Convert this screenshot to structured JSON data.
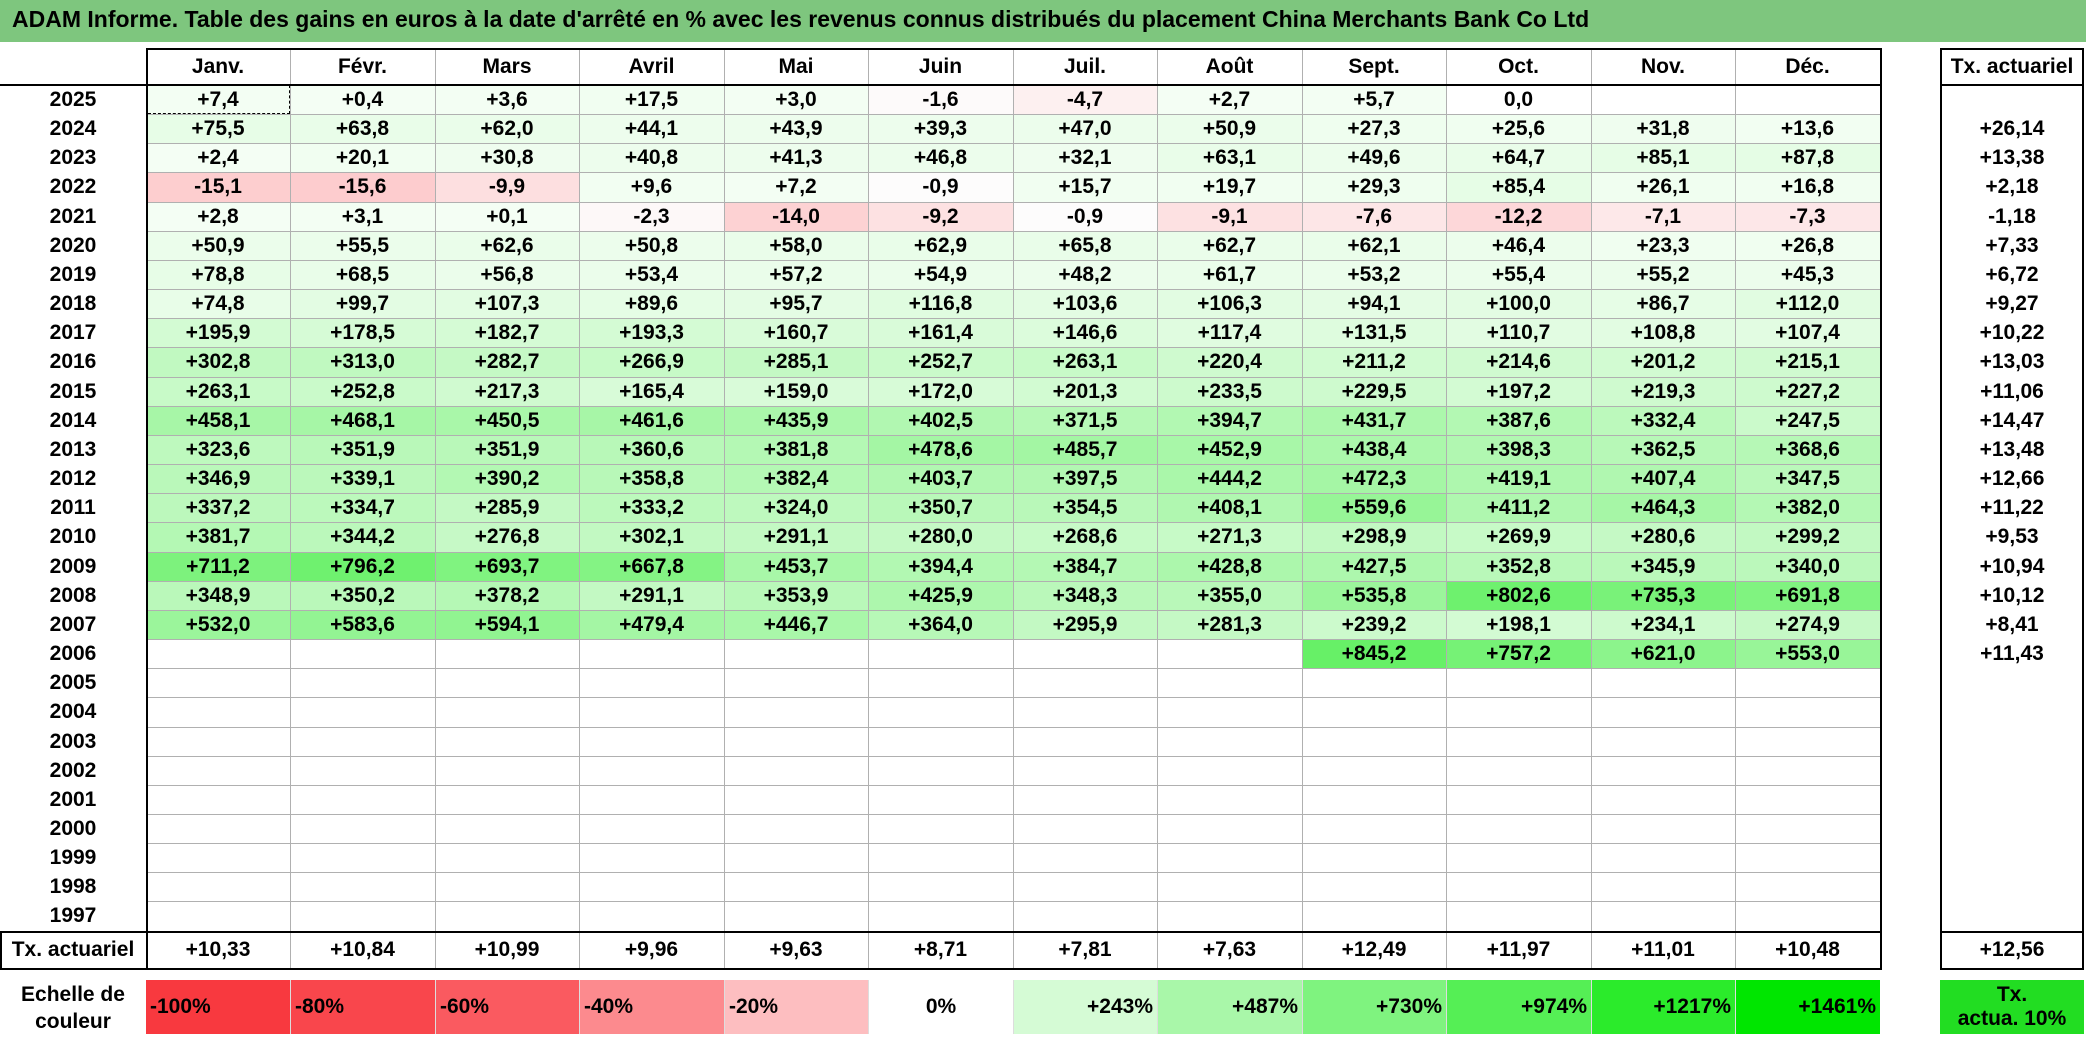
{
  "title": "ADAM Informe. Table des gains en euros à la date d'arrêté en % avec les revenus connus distribués du placement China Merchants Bank Co Ltd",
  "months": [
    "Janv.",
    "Févr.",
    "Mars",
    "Avril",
    "Mai",
    "Juin",
    "Juil.",
    "Août",
    "Sept.",
    "Oct.",
    "Nov.",
    "Déc."
  ],
  "tx_header": "Tx. actuariel",
  "rows": [
    {
      "year": "2025",
      "values": [
        "+7,4",
        "+0,4",
        "+3,6",
        "+17,5",
        "+3,0",
        "-1,6",
        "-4,7",
        "+2,7",
        "+5,7",
        "0,0",
        "",
        ""
      ],
      "tx": ""
    },
    {
      "year": "2024",
      "values": [
        "+75,5",
        "+63,8",
        "+62,0",
        "+44,1",
        "+43,9",
        "+39,3",
        "+47,0",
        "+50,9",
        "+27,3",
        "+25,6",
        "+31,8",
        "+13,6"
      ],
      "tx": "+26,14"
    },
    {
      "year": "2023",
      "values": [
        "+2,4",
        "+20,1",
        "+30,8",
        "+40,8",
        "+41,3",
        "+46,8",
        "+32,1",
        "+63,1",
        "+49,6",
        "+64,7",
        "+85,1",
        "+87,8"
      ],
      "tx": "+13,38"
    },
    {
      "year": "2022",
      "values": [
        "-15,1",
        "-15,6",
        "-9,9",
        "+9,6",
        "+7,2",
        "-0,9",
        "+15,7",
        "+19,7",
        "+29,3",
        "+85,4",
        "+26,1",
        "+16,8"
      ],
      "tx": "+2,18"
    },
    {
      "year": "2021",
      "values": [
        "+2,8",
        "+3,1",
        "+0,1",
        "-2,3",
        "-14,0",
        "-9,2",
        "-0,9",
        "-9,1",
        "-7,6",
        "-12,2",
        "-7,1",
        "-7,3"
      ],
      "tx": "-1,18"
    },
    {
      "year": "2020",
      "values": [
        "+50,9",
        "+55,5",
        "+62,6",
        "+50,8",
        "+58,0",
        "+62,9",
        "+65,8",
        "+62,7",
        "+62,1",
        "+46,4",
        "+23,3",
        "+26,8"
      ],
      "tx": "+7,33"
    },
    {
      "year": "2019",
      "values": [
        "+78,8",
        "+68,5",
        "+56,8",
        "+53,4",
        "+57,2",
        "+54,9",
        "+48,2",
        "+61,7",
        "+53,2",
        "+55,4",
        "+55,2",
        "+45,3"
      ],
      "tx": "+6,72"
    },
    {
      "year": "2018",
      "values": [
        "+74,8",
        "+99,7",
        "+107,3",
        "+89,6",
        "+95,7",
        "+116,8",
        "+103,6",
        "+106,3",
        "+94,1",
        "+100,0",
        "+86,7",
        "+112,0"
      ],
      "tx": "+9,27"
    },
    {
      "year": "2017",
      "values": [
        "+195,9",
        "+178,5",
        "+182,7",
        "+193,3",
        "+160,7",
        "+161,4",
        "+146,6",
        "+117,4",
        "+131,5",
        "+110,7",
        "+108,8",
        "+107,4"
      ],
      "tx": "+10,22"
    },
    {
      "year": "2016",
      "values": [
        "+302,8",
        "+313,0",
        "+282,7",
        "+266,9",
        "+285,1",
        "+252,7",
        "+263,1",
        "+220,4",
        "+211,2",
        "+214,6",
        "+201,2",
        "+215,1"
      ],
      "tx": "+13,03"
    },
    {
      "year": "2015",
      "values": [
        "+263,1",
        "+252,8",
        "+217,3",
        "+165,4",
        "+159,0",
        "+172,0",
        "+201,3",
        "+233,5",
        "+229,5",
        "+197,2",
        "+219,3",
        "+227,2"
      ],
      "tx": "+11,06"
    },
    {
      "year": "2014",
      "values": [
        "+458,1",
        "+468,1",
        "+450,5",
        "+461,6",
        "+435,9",
        "+402,5",
        "+371,5",
        "+394,7",
        "+431,7",
        "+387,6",
        "+332,4",
        "+247,5"
      ],
      "tx": "+14,47"
    },
    {
      "year": "2013",
      "values": [
        "+323,6",
        "+351,9",
        "+351,9",
        "+360,6",
        "+381,8",
        "+478,6",
        "+485,7",
        "+452,9",
        "+438,4",
        "+398,3",
        "+362,5",
        "+368,6"
      ],
      "tx": "+13,48"
    },
    {
      "year": "2012",
      "values": [
        "+346,9",
        "+339,1",
        "+390,2",
        "+358,8",
        "+382,4",
        "+403,7",
        "+397,5",
        "+444,2",
        "+472,3",
        "+419,1",
        "+407,4",
        "+347,5"
      ],
      "tx": "+12,66"
    },
    {
      "year": "2011",
      "values": [
        "+337,2",
        "+334,7",
        "+285,9",
        "+333,2",
        "+324,0",
        "+350,7",
        "+354,5",
        "+408,1",
        "+559,6",
        "+411,2",
        "+464,3",
        "+382,0"
      ],
      "tx": "+11,22"
    },
    {
      "year": "2010",
      "values": [
        "+381,7",
        "+344,2",
        "+276,8",
        "+302,1",
        "+291,1",
        "+280,0",
        "+268,6",
        "+271,3",
        "+298,9",
        "+269,9",
        "+280,6",
        "+299,2"
      ],
      "tx": "+9,53"
    },
    {
      "year": "2009",
      "values": [
        "+711,2",
        "+796,2",
        "+693,7",
        "+667,8",
        "+453,7",
        "+394,4",
        "+384,7",
        "+428,8",
        "+427,5",
        "+352,8",
        "+345,9",
        "+340,0"
      ],
      "tx": "+10,94"
    },
    {
      "year": "2008",
      "values": [
        "+348,9",
        "+350,2",
        "+378,2",
        "+291,1",
        "+353,9",
        "+425,9",
        "+348,3",
        "+355,0",
        "+535,8",
        "+802,6",
        "+735,3",
        "+691,8"
      ],
      "tx": "+10,12"
    },
    {
      "year": "2007",
      "values": [
        "+532,0",
        "+583,6",
        "+594,1",
        "+479,4",
        "+446,7",
        "+364,0",
        "+295,9",
        "+281,3",
        "+239,2",
        "+198,1",
        "+234,1",
        "+274,9"
      ],
      "tx": "+8,41"
    },
    {
      "year": "2006",
      "values": [
        "",
        "",
        "",
        "",
        "",
        "",
        "",
        "",
        "+845,2",
        "+757,2",
        "+621,0",
        "+553,0"
      ],
      "tx": "+11,43"
    },
    {
      "year": "2005",
      "values": [
        "",
        "",
        "",
        "",
        "",
        "",
        "",
        "",
        "",
        "",
        "",
        ""
      ],
      "tx": ""
    },
    {
      "year": "2004",
      "values": [
        "",
        "",
        "",
        "",
        "",
        "",
        "",
        "",
        "",
        "",
        "",
        ""
      ],
      "tx": ""
    },
    {
      "year": "2003",
      "values": [
        "",
        "",
        "",
        "",
        "",
        "",
        "",
        "",
        "",
        "",
        "",
        ""
      ],
      "tx": ""
    },
    {
      "year": "2002",
      "values": [
        "",
        "",
        "",
        "",
        "",
        "",
        "",
        "",
        "",
        "",
        "",
        ""
      ],
      "tx": ""
    },
    {
      "year": "2001",
      "values": [
        "",
        "",
        "",
        "",
        "",
        "",
        "",
        "",
        "",
        "",
        "",
        ""
      ],
      "tx": ""
    },
    {
      "year": "2000",
      "values": [
        "",
        "",
        "",
        "",
        "",
        "",
        "",
        "",
        "",
        "",
        "",
        ""
      ],
      "tx": ""
    },
    {
      "year": "1999",
      "values": [
        "",
        "",
        "",
        "",
        "",
        "",
        "",
        "",
        "",
        "",
        "",
        ""
      ],
      "tx": ""
    },
    {
      "year": "1998",
      "values": [
        "",
        "",
        "",
        "",
        "",
        "",
        "",
        "",
        "",
        "",
        "",
        ""
      ],
      "tx": ""
    },
    {
      "year": "1997",
      "values": [
        "",
        "",
        "",
        "",
        "",
        "",
        "",
        "",
        "",
        "",
        "",
        ""
      ],
      "tx": ""
    }
  ],
  "footer": {
    "label": "Tx. actuariel",
    "values": [
      "+10,33",
      "+10,84",
      "+10,99",
      "+9,96",
      "+9,63",
      "+8,71",
      "+7,81",
      "+7,63",
      "+12,49",
      "+11,97",
      "+11,01",
      "+10,48"
    ],
    "tx": "+12,56"
  },
  "scale": {
    "label_line1": "Echelle de",
    "label_line2": "couleur",
    "items": [
      {
        "text": "-100%",
        "color": "#f8393f",
        "align": "left"
      },
      {
        "text": "-80%",
        "color": "#f9464c",
        "align": "left"
      },
      {
        "text": "-60%",
        "color": "#fa5a60",
        "align": "left"
      },
      {
        "text": "-40%",
        "color": "#fc8a8e",
        "align": "left"
      },
      {
        "text": "-20%",
        "color": "#fdbec0",
        "align": "left"
      },
      {
        "text": "0%",
        "color": "#ffffff",
        "align": "center"
      },
      {
        "text": "+243%",
        "color": "#d5fbd5",
        "align": "right"
      },
      {
        "text": "+487%",
        "color": "#a9f7a9",
        "align": "right"
      },
      {
        "text": "+730%",
        "color": "#7ff37f",
        "align": "right"
      },
      {
        "text": "+974%",
        "color": "#55ef55",
        "align": "right"
      },
      {
        "text": "+1217%",
        "color": "#2beb2b",
        "align": "right"
      },
      {
        "text": "+1461%",
        "color": "#00e600",
        "align": "right"
      }
    ],
    "tx_line1": "Tx.",
    "tx_line2": "actua. 10%",
    "tx_color": "#22dd22"
  }
}
